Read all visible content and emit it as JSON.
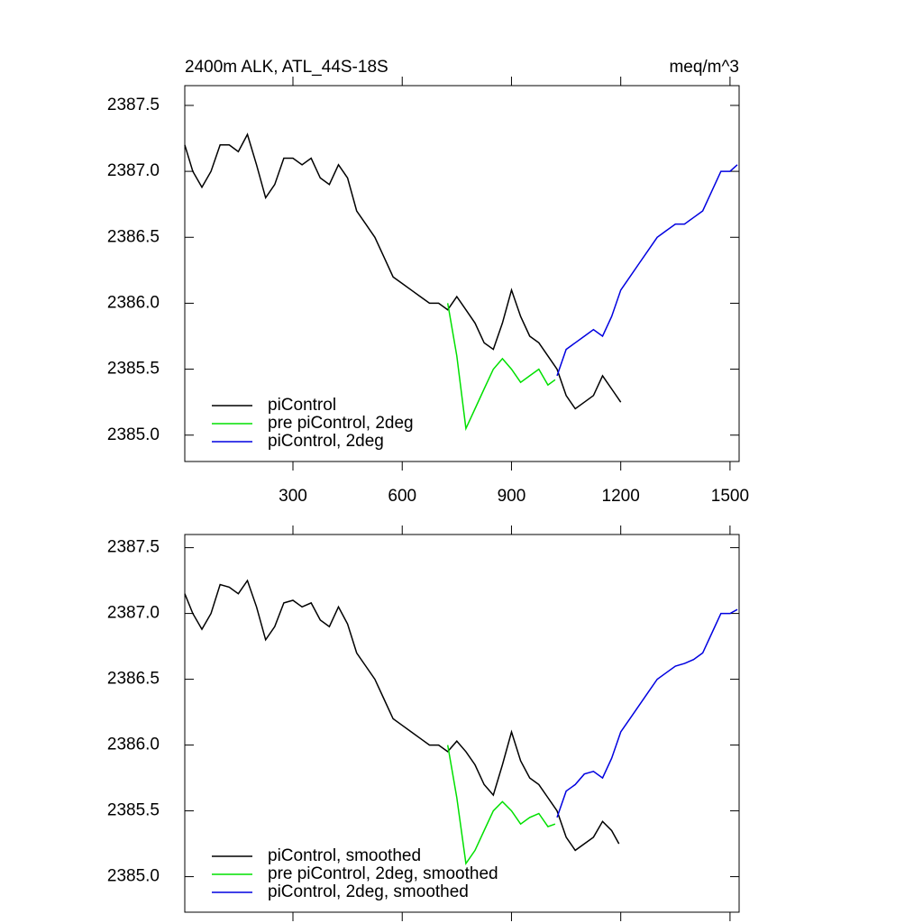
{
  "chart_data": [
    {
      "type": "line",
      "title": "2400m ALK, ATL_44S-18S",
      "units_label": "meq/m^3",
      "xlim": [
        3,
        1525
      ],
      "ylim": [
        2384.8,
        2387.65
      ],
      "xticks": [
        300,
        600,
        900,
        1200,
        1500
      ],
      "yticks": [
        {
          "value": 2385,
          "label": "2385.0"
        },
        2385.5,
        {
          "value": 2386,
          "label": "2386.0"
        },
        2386.5,
        {
          "value": 2387,
          "label": "2387.0"
        },
        2387.5
      ],
      "legend": "lower left",
      "series": [
        {
          "name": "piControl",
          "color": "#000000",
          "x": [
            3,
            25,
            50,
            75,
            100,
            125,
            150,
            175,
            200,
            225,
            250,
            275,
            300,
            325,
            350,
            375,
            400,
            425,
            450,
            475,
            500,
            525,
            550,
            575,
            600,
            625,
            650,
            675,
            700,
            725,
            750,
            775,
            800,
            825,
            850,
            875,
            900,
            925,
            950,
            975,
            1000,
            1025,
            1050,
            1075,
            1100,
            1125,
            1150,
            1175,
            1200
          ],
          "values": [
            2387.2,
            2387.0,
            2386.88,
            2387.0,
            2387.2,
            2387.2,
            2387.15,
            2387.28,
            2387.05,
            2386.8,
            2386.9,
            2387.1,
            2387.1,
            2387.05,
            2387.1,
            2386.95,
            2386.9,
            2387.05,
            2386.95,
            2386.7,
            2386.6,
            2386.5,
            2386.35,
            2386.2,
            2386.15,
            2386.1,
            2386.05,
            2386.0,
            2386.0,
            2385.95,
            2386.05,
            2385.95,
            2385.85,
            2385.7,
            2385.65,
            2385.85,
            2386.1,
            2385.9,
            2385.75,
            2385.7,
            2385.6,
            2385.5,
            2385.3,
            2385.2,
            2385.25,
            2385.3,
            2385.45,
            2385.35,
            2385.25
          ]
        },
        {
          "name": "pre piControl, 2deg",
          "color": "#00e000",
          "x": [
            725,
            750,
            775,
            800,
            825,
            850,
            875,
            900,
            925,
            950,
            975,
            1000,
            1020
          ],
          "values": [
            2386.0,
            2385.6,
            2385.05,
            2385.2,
            2385.35,
            2385.5,
            2385.58,
            2385.5,
            2385.4,
            2385.45,
            2385.5,
            2385.38,
            2385.42
          ]
        },
        {
          "name": "piControl, 2deg",
          "color": "#0000e0",
          "x": [
            1025,
            1050,
            1075,
            1100,
            1125,
            1150,
            1175,
            1200,
            1225,
            1250,
            1275,
            1300,
            1325,
            1350,
            1375,
            1400,
            1425,
            1450,
            1475,
            1500,
            1520
          ],
          "values": [
            2385.45,
            2385.65,
            2385.7,
            2385.75,
            2385.8,
            2385.75,
            2385.9,
            2386.1,
            2386.2,
            2386.3,
            2386.4,
            2386.5,
            2386.55,
            2386.6,
            2386.6,
            2386.65,
            2386.7,
            2386.85,
            2387.0,
            2387.0,
            2387.05
          ]
        }
      ]
    },
    {
      "type": "line",
      "xlim": [
        3,
        1525
      ],
      "ylim": [
        2384.73,
        2387.6
      ],
      "xticks": [
        300,
        600,
        900,
        1200,
        1500
      ],
      "yticks": [
        {
          "value": 2385,
          "label": "2385.0"
        },
        2385.5,
        {
          "value": 2386,
          "label": "2386.0"
        },
        2386.5,
        {
          "value": 2387,
          "label": "2387.0"
        },
        2387.5
      ],
      "legend": "lower left",
      "series": [
        {
          "name": "piControl, smoothed",
          "color": "#000000",
          "x": [
            3,
            25,
            50,
            75,
            100,
            125,
            150,
            175,
            200,
            225,
            250,
            275,
            300,
            325,
            350,
            375,
            400,
            425,
            450,
            475,
            500,
            525,
            550,
            575,
            600,
            625,
            650,
            675,
            700,
            725,
            750,
            775,
            800,
            825,
            850,
            875,
            900,
            925,
            950,
            975,
            1000,
            1025,
            1050,
            1075,
            1100,
            1125,
            1150,
            1175,
            1195
          ],
          "values": [
            2387.15,
            2387.0,
            2386.88,
            2387.0,
            2387.22,
            2387.2,
            2387.15,
            2387.25,
            2387.05,
            2386.8,
            2386.9,
            2387.08,
            2387.1,
            2387.05,
            2387.08,
            2386.95,
            2386.9,
            2387.05,
            2386.92,
            2386.7,
            2386.6,
            2386.5,
            2386.35,
            2386.2,
            2386.15,
            2386.1,
            2386.05,
            2386.0,
            2386.0,
            2385.95,
            2386.03,
            2385.95,
            2385.85,
            2385.7,
            2385.62,
            2385.85,
            2386.1,
            2385.88,
            2385.75,
            2385.7,
            2385.6,
            2385.5,
            2385.3,
            2385.2,
            2385.25,
            2385.3,
            2385.42,
            2385.35,
            2385.25
          ]
        },
        {
          "name": "pre piControl, 2deg, smoothed",
          "color": "#00e000",
          "x": [
            725,
            750,
            775,
            800,
            825,
            850,
            875,
            900,
            925,
            950,
            975,
            1000,
            1020
          ],
          "values": [
            2386.0,
            2385.6,
            2385.1,
            2385.2,
            2385.35,
            2385.5,
            2385.57,
            2385.5,
            2385.4,
            2385.45,
            2385.48,
            2385.38,
            2385.4
          ]
        },
        {
          "name": "piControl, 2deg, smoothed",
          "color": "#0000e0",
          "x": [
            1025,
            1050,
            1075,
            1100,
            1125,
            1150,
            1175,
            1200,
            1225,
            1250,
            1275,
            1300,
            1325,
            1350,
            1375,
            1400,
            1425,
            1450,
            1475,
            1500,
            1520
          ],
          "values": [
            2385.45,
            2385.65,
            2385.7,
            2385.78,
            2385.8,
            2385.75,
            2385.9,
            2386.1,
            2386.2,
            2386.3,
            2386.4,
            2386.5,
            2386.55,
            2386.6,
            2386.62,
            2386.65,
            2386.7,
            2386.85,
            2387.0,
            2387.0,
            2387.03
          ]
        }
      ]
    }
  ]
}
